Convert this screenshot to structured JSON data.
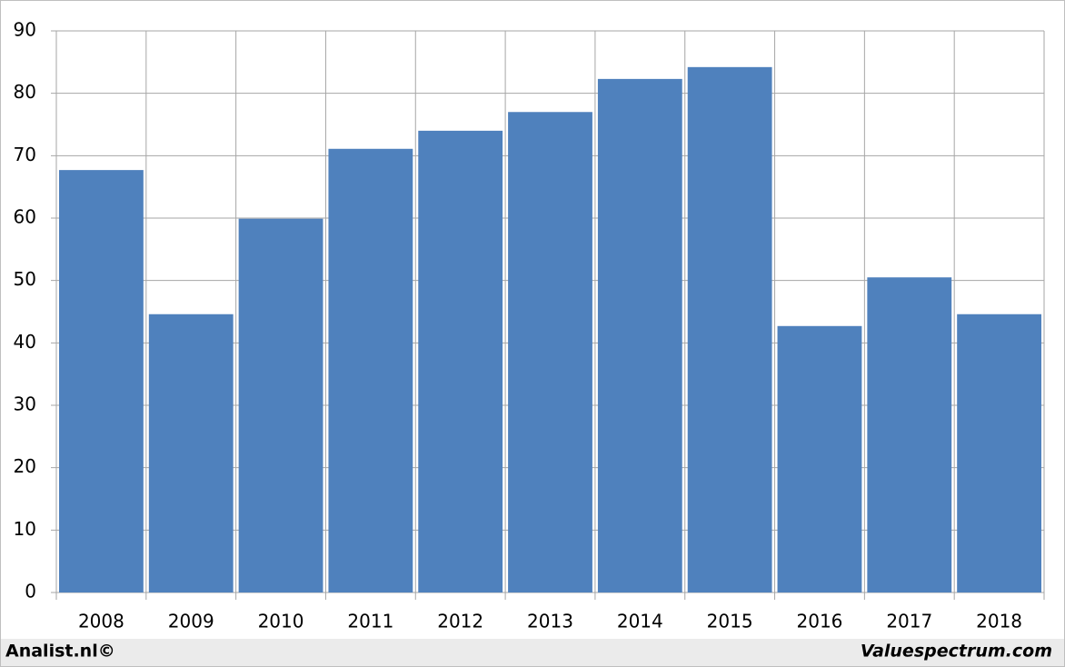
{
  "chart_data": {
    "type": "bar",
    "categories": [
      "2008",
      "2009",
      "2010",
      "2011",
      "2012",
      "2013",
      "2014",
      "2015",
      "2016",
      "2017",
      "2018"
    ],
    "values": [
      67.7,
      44.6,
      59.9,
      71.1,
      74.0,
      77.0,
      82.3,
      84.2,
      42.7,
      50.5,
      44.6
    ],
    "color": "#4f81bd",
    "ylim": [
      0,
      90
    ],
    "yticks": [
      0,
      10,
      20,
      30,
      40,
      50,
      60,
      70,
      80,
      90
    ],
    "grid": true
  },
  "footer": {
    "left": "Analist.nl©",
    "right": "Valuespectrum.com"
  }
}
